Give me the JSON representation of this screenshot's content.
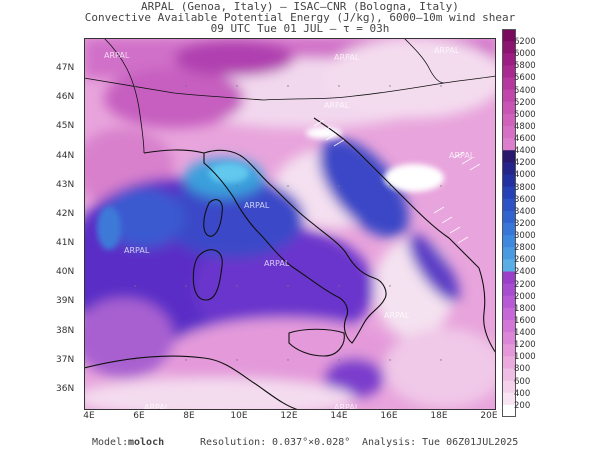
{
  "title": {
    "line1": "ARPAL (Genoa, Italy)  –  ISAC–CNR (Bologna, Italy)",
    "line2": "Convective Available Potential Energy (J/kg), 6000–10m wind shear",
    "line3": "09 UTC Tue 01 JUL  –  τ = 03h"
  },
  "map": {
    "lat_labels": [
      "47N",
      "46N",
      "45N",
      "44N",
      "43N",
      "42N",
      "41N",
      "40N",
      "39N",
      "38N",
      "37N",
      "36N"
    ],
    "lon_labels": [
      "4E",
      "6E",
      "8E",
      "10E",
      "12E",
      "14E",
      "16E",
      "18E",
      "20E"
    ],
    "watermark": "ARPAL"
  },
  "colorbar": {
    "labels": [
      "6200",
      "6000",
      "5800",
      "5600",
      "5400",
      "5200",
      "5000",
      "4800",
      "4600",
      "4400",
      "4200",
      "4000",
      "3800",
      "3600",
      "3400",
      "3200",
      "3000",
      "2800",
      "2600",
      "2400",
      "2200",
      "2000",
      "1800",
      "1600",
      "1400",
      "1200",
      "1000",
      "800",
      "600",
      "400",
      "200"
    ],
    "colors": [
      "#7a0a5e",
      "#8b1470",
      "#9c1e82",
      "#a82a90",
      "#b5389e",
      "#c046aa",
      "#c854b4",
      "#d062bc",
      "#d670c4",
      "#dc7ecb",
      "#2a1a6e",
      "#24248a",
      "#2330a0",
      "#2640b6",
      "#2c52c6",
      "#3264d0",
      "#3876d8",
      "#3e88de",
      "#4a9ae2",
      "#5aaee6",
      "#9a40c8",
      "#a84cd0",
      "#b85ad6",
      "#c668d8",
      "#d276d8",
      "#dc86d8",
      "#e498da",
      "#eaaade",
      "#efbee4",
      "#f4d2ec",
      "#f8e4f2",
      "#ffffff"
    ]
  },
  "footer": {
    "model_label": "Model:",
    "model_value": "moloch",
    "resolution_label": "Resolution:",
    "resolution_value": "0.037°×0.028°",
    "analysis_label": "Analysis:",
    "analysis_value": "Tue 06Z01JUL2025"
  }
}
